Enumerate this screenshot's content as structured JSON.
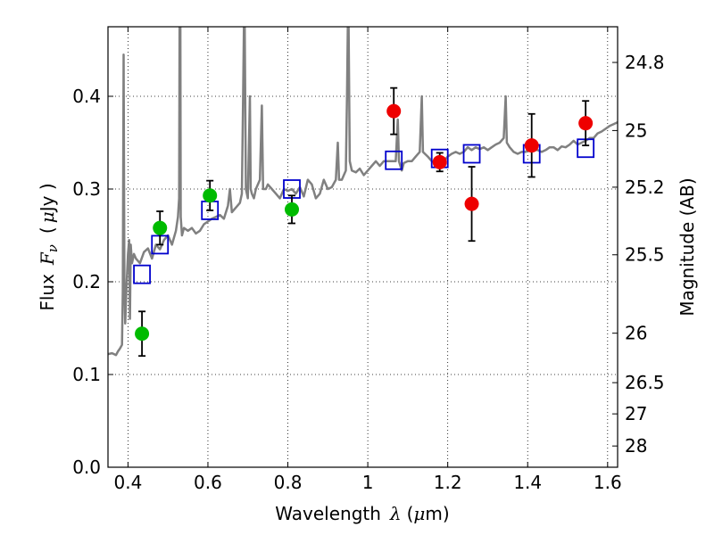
{
  "chart_data": {
    "type": "scatter",
    "xlabel_prefix": "Wavelength",
    "xlabel_symbol": "λ",
    "xlabel_unit_open": "(",
    "xlabel_unit_mu": "μ",
    "xlabel_unit_rest": "m)",
    "ylabel_prefix": "Flux",
    "ylabel_symbol": "F",
    "ylabel_sub": "ν",
    "ylabel_unit_open": "(",
    "ylabel_unit_mu": "μ",
    "ylabel_unit_rest": "Jy )",
    "y2label": "Magnitude (AB)",
    "xlim": [
      0.35,
      1.625
    ],
    "ylim": [
      0.0,
      0.475
    ],
    "grid": true,
    "xticks": [
      {
        "value": 0.4,
        "label": "0.4"
      },
      {
        "value": 0.6,
        "label": "0.6"
      },
      {
        "value": 0.8,
        "label": "0.8"
      },
      {
        "value": 1.0,
        "label": "1"
      },
      {
        "value": 1.2,
        "label": "1.2"
      },
      {
        "value": 1.4,
        "label": "1.4"
      },
      {
        "value": 1.6,
        "label": "1.6"
      }
    ],
    "yticks": [
      {
        "value": 0.0,
        "label": "0.0"
      },
      {
        "value": 0.1,
        "label": "0.1"
      },
      {
        "value": 0.2,
        "label": "0.2"
      },
      {
        "value": 0.3,
        "label": "0.3"
      },
      {
        "value": 0.4,
        "label": "0.4"
      }
    ],
    "y2ticks": [
      {
        "value": 24.8,
        "label": "24.8"
      },
      {
        "value": 25.0,
        "label": "25"
      },
      {
        "value": 25.2,
        "label": "25.2"
      },
      {
        "value": 25.5,
        "label": "25.5"
      },
      {
        "value": 26.0,
        "label": "26"
      },
      {
        "value": 26.5,
        "label": "26.5"
      },
      {
        "value": 27.0,
        "label": "27"
      },
      {
        "value": 28.0,
        "label": "28"
      }
    ],
    "series": [
      {
        "name": "model_spectrum",
        "kind": "line",
        "color": "#808080",
        "points": [
          [
            0.35,
            0.122
          ],
          [
            0.36,
            0.123
          ],
          [
            0.37,
            0.121
          ],
          [
            0.375,
            0.125
          ],
          [
            0.38,
            0.128
          ],
          [
            0.385,
            0.132
          ],
          [
            0.387,
            0.19
          ],
          [
            0.389,
            0.445
          ],
          [
            0.391,
            0.2
          ],
          [
            0.393,
            0.155
          ],
          [
            0.397,
            0.2
          ],
          [
            0.4,
            0.23
          ],
          [
            0.403,
            0.245
          ],
          [
            0.405,
            0.16
          ],
          [
            0.407,
            0.24
          ],
          [
            0.41,
            0.22
          ],
          [
            0.415,
            0.23
          ],
          [
            0.42,
            0.225
          ],
          [
            0.43,
            0.22
          ],
          [
            0.44,
            0.232
          ],
          [
            0.45,
            0.236
          ],
          [
            0.46,
            0.225
          ],
          [
            0.47,
            0.24
          ],
          [
            0.48,
            0.235
          ],
          [
            0.49,
            0.245
          ],
          [
            0.5,
            0.25
          ],
          [
            0.51,
            0.24
          ],
          [
            0.52,
            0.255
          ],
          [
            0.525,
            0.27
          ],
          [
            0.528,
            0.29
          ],
          [
            0.529,
            0.475
          ],
          [
            0.531,
            0.475
          ],
          [
            0.532,
            0.27
          ],
          [
            0.535,
            0.25
          ],
          [
            0.54,
            0.258
          ],
          [
            0.55,
            0.255
          ],
          [
            0.56,
            0.258
          ],
          [
            0.57,
            0.252
          ],
          [
            0.58,
            0.255
          ],
          [
            0.59,
            0.262
          ],
          [
            0.6,
            0.265
          ],
          [
            0.61,
            0.268
          ],
          [
            0.62,
            0.27
          ],
          [
            0.63,
            0.272
          ],
          [
            0.64,
            0.268
          ],
          [
            0.65,
            0.282
          ],
          [
            0.655,
            0.3
          ],
          [
            0.66,
            0.275
          ],
          [
            0.67,
            0.28
          ],
          [
            0.68,
            0.285
          ],
          [
            0.685,
            0.295
          ],
          [
            0.688,
            0.4
          ],
          [
            0.69,
            0.475
          ],
          [
            0.692,
            0.475
          ],
          [
            0.695,
            0.3
          ],
          [
            0.7,
            0.29
          ],
          [
            0.705,
            0.4
          ],
          [
            0.707,
            0.3
          ],
          [
            0.71,
            0.295
          ],
          [
            0.715,
            0.29
          ],
          [
            0.72,
            0.3
          ],
          [
            0.73,
            0.31
          ],
          [
            0.735,
            0.39
          ],
          [
            0.738,
            0.3
          ],
          [
            0.745,
            0.3
          ],
          [
            0.75,
            0.305
          ],
          [
            0.76,
            0.3
          ],
          [
            0.77,
            0.295
          ],
          [
            0.78,
            0.29
          ],
          [
            0.79,
            0.3
          ],
          [
            0.8,
            0.298
          ],
          [
            0.81,
            0.3
          ],
          [
            0.82,
            0.295
          ],
          [
            0.83,
            0.302
          ],
          [
            0.84,
            0.292
          ],
          [
            0.85,
            0.31
          ],
          [
            0.86,
            0.305
          ],
          [
            0.87,
            0.29
          ],
          [
            0.88,
            0.295
          ],
          [
            0.89,
            0.31
          ],
          [
            0.9,
            0.3
          ],
          [
            0.91,
            0.302
          ],
          [
            0.92,
            0.31
          ],
          [
            0.925,
            0.35
          ],
          [
            0.928,
            0.31
          ],
          [
            0.935,
            0.31
          ],
          [
            0.945,
            0.32
          ],
          [
            0.948,
            0.4
          ],
          [
            0.95,
            0.475
          ],
          [
            0.952,
            0.475
          ],
          [
            0.955,
            0.33
          ],
          [
            0.96,
            0.32
          ],
          [
            0.97,
            0.318
          ],
          [
            0.98,
            0.322
          ],
          [
            0.99,
            0.315
          ],
          [
            1.0,
            0.32
          ],
          [
            1.01,
            0.325
          ],
          [
            1.02,
            0.33
          ],
          [
            1.03,
            0.325
          ],
          [
            1.04,
            0.33
          ],
          [
            1.05,
            0.33
          ],
          [
            1.06,
            0.33
          ],
          [
            1.07,
            0.33
          ],
          [
            1.075,
            0.375
          ],
          [
            1.078,
            0.33
          ],
          [
            1.085,
            0.32
          ],
          [
            1.09,
            0.328
          ],
          [
            1.1,
            0.33
          ],
          [
            1.11,
            0.33
          ],
          [
            1.12,
            0.335
          ],
          [
            1.13,
            0.34
          ],
          [
            1.135,
            0.4
          ],
          [
            1.138,
            0.34
          ],
          [
            1.15,
            0.335
          ],
          [
            1.16,
            0.33
          ],
          [
            1.17,
            0.328
          ],
          [
            1.18,
            0.335
          ],
          [
            1.19,
            0.33
          ],
          [
            1.2,
            0.335
          ],
          [
            1.21,
            0.338
          ],
          [
            1.22,
            0.34
          ],
          [
            1.23,
            0.338
          ],
          [
            1.24,
            0.34
          ],
          [
            1.25,
            0.345
          ],
          [
            1.26,
            0.342
          ],
          [
            1.27,
            0.345
          ],
          [
            1.28,
            0.343
          ],
          [
            1.29,
            0.345
          ],
          [
            1.3,
            0.342
          ],
          [
            1.31,
            0.345
          ],
          [
            1.32,
            0.348
          ],
          [
            1.33,
            0.35
          ],
          [
            1.34,
            0.355
          ],
          [
            1.345,
            0.4
          ],
          [
            1.348,
            0.35
          ],
          [
            1.355,
            0.345
          ],
          [
            1.365,
            0.34
          ],
          [
            1.375,
            0.338
          ],
          [
            1.385,
            0.34
          ],
          [
            1.395,
            0.34
          ],
          [
            1.405,
            0.345
          ],
          [
            1.415,
            0.342
          ],
          [
            1.425,
            0.342
          ],
          [
            1.435,
            0.34
          ],
          [
            1.445,
            0.342
          ],
          [
            1.455,
            0.345
          ],
          [
            1.465,
            0.345
          ],
          [
            1.475,
            0.342
          ],
          [
            1.485,
            0.346
          ],
          [
            1.495,
            0.345
          ],
          [
            1.505,
            0.348
          ],
          [
            1.515,
            0.352
          ],
          [
            1.525,
            0.348
          ],
          [
            1.535,
            0.35
          ],
          [
            1.545,
            0.352
          ],
          [
            1.555,
            0.355
          ],
          [
            1.565,
            0.355
          ],
          [
            1.575,
            0.36
          ],
          [
            1.585,
            0.362
          ],
          [
            1.595,
            0.365
          ],
          [
            1.605,
            0.368
          ],
          [
            1.615,
            0.37
          ],
          [
            1.625,
            0.372
          ]
        ]
      },
      {
        "name": "model_photometry",
        "kind": "open-square",
        "color": "#0000cc",
        "points": [
          [
            0.435,
            0.208
          ],
          [
            0.48,
            0.24
          ],
          [
            0.605,
            0.277
          ],
          [
            0.81,
            0.3
          ],
          [
            1.065,
            0.331
          ],
          [
            1.18,
            0.333
          ],
          [
            1.26,
            0.338
          ],
          [
            1.41,
            0.338
          ],
          [
            1.545,
            0.344
          ]
        ]
      },
      {
        "name": "observed_optical",
        "kind": "filled-circle",
        "color": "#00bb00",
        "points": [
          [
            0.435,
            0.144
          ],
          [
            0.48,
            0.258
          ],
          [
            0.605,
            0.293
          ],
          [
            0.81,
            0.278
          ]
        ],
        "errors": [
          0.024,
          0.018,
          0.016,
          0.015
        ]
      },
      {
        "name": "observed_nir",
        "kind": "filled-circle",
        "color": "#ee0000",
        "points": [
          [
            1.065,
            0.384
          ],
          [
            1.18,
            0.329
          ],
          [
            1.26,
            0.284
          ],
          [
            1.41,
            0.347
          ],
          [
            1.545,
            0.371
          ]
        ],
        "errors": [
          0.025,
          0.01,
          0.04,
          0.034,
          0.024
        ]
      }
    ]
  }
}
